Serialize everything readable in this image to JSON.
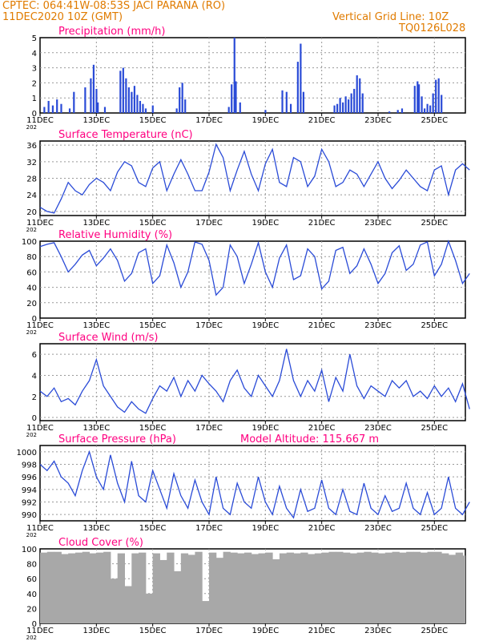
{
  "header": {
    "line1": "CPTEC:    064:41W-08:53S   JACI PARANA (RO)",
    "line2": "11DEC2020 10Z (GMT)",
    "grid_note": "Vertical Grid Line: 10Z",
    "code": "TQ0126L028"
  },
  "colors": {
    "header": "#e07b00",
    "title": "#ff0080",
    "line": "#2a4bd7",
    "bar": "#2a4bd7",
    "cloud": "#a8a8a8"
  },
  "x_axis": {
    "ticks": [
      "11DEC",
      "13DEC",
      "15DEC",
      "17DEC",
      "19DEC",
      "21DEC",
      "23DEC",
      "25DEC"
    ],
    "tick_days": [
      0,
      2,
      4,
      6,
      8,
      10,
      12,
      14
    ],
    "year_stub": "202",
    "range_days": [
      0,
      15.1
    ]
  },
  "chart_data": [
    {
      "type": "bar",
      "title": "Precipitation (mm/h)",
      "ylim": [
        0,
        5
      ],
      "yticks": [
        0,
        1,
        2,
        3,
        4,
        5
      ],
      "x_days": [
        0.15,
        0.3,
        0.45,
        0.6,
        0.75,
        1.05,
        1.2,
        1.6,
        1.8,
        1.9,
        2.0,
        2.05,
        2.3,
        2.85,
        2.95,
        3.05,
        3.15,
        3.25,
        3.35,
        3.45,
        3.55,
        3.65,
        3.75,
        4.0,
        4.85,
        4.95,
        5.05,
        5.15,
        6.7,
        6.8,
        6.9,
        6.95,
        7.1,
        8.0,
        8.6,
        8.75,
        8.9,
        9.15,
        9.25,
        9.35,
        10.45,
        10.55,
        10.65,
        10.75,
        10.85,
        10.95,
        11.05,
        11.15,
        11.25,
        11.35,
        11.45,
        12.4,
        12.7,
        12.85,
        13.3,
        13.4,
        13.45,
        13.55,
        13.65,
        13.75,
        13.85,
        13.95,
        14.05,
        14.15,
        14.25
      ],
      "values": [
        0.4,
        0.8,
        0.5,
        0.9,
        0.6,
        0.3,
        1.4,
        1.7,
        2.3,
        3.2,
        1.6,
        0.7,
        0.4,
        2.8,
        3.0,
        2.3,
        1.7,
        1.4,
        1.8,
        1.2,
        0.8,
        0.6,
        0.3,
        0.5,
        0.3,
        1.7,
        2.0,
        0.9,
        0.4,
        1.9,
        5.0,
        2.1,
        0.7,
        0.2,
        1.5,
        1.4,
        0.6,
        3.4,
        4.6,
        1.4,
        0.5,
        0.6,
        1.0,
        0.7,
        1.1,
        0.9,
        1.3,
        1.6,
        2.5,
        2.3,
        1.3,
        0.1,
        0.2,
        0.3,
        1.8,
        2.1,
        1.9,
        1.1,
        0.3,
        0.6,
        0.5,
        1.3,
        2.2,
        2.3,
        1.2
      ]
    },
    {
      "type": "line",
      "title": "Surface Temperature (nC)",
      "ylim": [
        19,
        37
      ],
      "yticks": [
        20,
        24,
        28,
        32,
        36
      ],
      "x_days": [
        0,
        0.25,
        0.5,
        0.75,
        1.0,
        1.25,
        1.5,
        1.75,
        2.0,
        2.25,
        2.5,
        2.75,
        3.0,
        3.25,
        3.5,
        3.75,
        4.0,
        4.25,
        4.5,
        4.75,
        5.0,
        5.25,
        5.5,
        5.75,
        6.0,
        6.25,
        6.5,
        6.75,
        7.0,
        7.25,
        7.5,
        7.75,
        8.0,
        8.25,
        8.5,
        8.75,
        9.0,
        9.25,
        9.5,
        9.75,
        10.0,
        10.25,
        10.5,
        10.75,
        11.0,
        11.25,
        11.5,
        11.75,
        12.0,
        12.25,
        12.5,
        12.75,
        13.0,
        13.25,
        13.5,
        13.75,
        14.0,
        14.25,
        14.5,
        14.75,
        15.0,
        15.25
      ],
      "values": [
        21,
        20,
        19.6,
        23,
        27,
        25,
        24,
        26.5,
        28,
        27,
        25,
        29.5,
        32,
        31,
        27,
        26,
        30.5,
        32,
        25,
        29,
        32.5,
        29,
        25,
        25,
        29.5,
        36.2,
        33,
        25,
        30,
        34.5,
        29,
        25,
        31.5,
        35,
        27,
        26,
        33,
        32,
        26,
        28.5,
        35,
        32,
        26,
        27,
        30,
        29,
        26,
        29,
        32,
        28,
        25.5,
        27.5,
        30,
        28,
        26,
        25,
        30,
        31,
        24,
        30,
        31.5,
        30
      ]
    },
    {
      "type": "line",
      "title": "Relative Humidity (%)",
      "ylim": [
        0,
        100
      ],
      "yticks": [
        0,
        20,
        40,
        60,
        80,
        100
      ],
      "x_days": [
        0,
        0.25,
        0.5,
        0.75,
        1.0,
        1.25,
        1.5,
        1.75,
        2.0,
        2.25,
        2.5,
        2.75,
        3.0,
        3.25,
        3.5,
        3.75,
        4.0,
        4.25,
        4.5,
        4.75,
        5.0,
        5.25,
        5.5,
        5.75,
        6.0,
        6.25,
        6.5,
        6.75,
        7.0,
        7.25,
        7.5,
        7.75,
        8.0,
        8.25,
        8.5,
        8.75,
        9.0,
        9.25,
        9.5,
        9.75,
        10.0,
        10.25,
        10.5,
        10.75,
        11.0,
        11.25,
        11.5,
        11.75,
        12.0,
        12.25,
        12.5,
        12.75,
        13.0,
        13.25,
        13.5,
        13.75,
        14.0,
        14.25,
        14.5,
        14.75,
        15.0,
        15.25
      ],
      "values": [
        93,
        96,
        98,
        80,
        60,
        70,
        82,
        88,
        68,
        78,
        90,
        75,
        48,
        58,
        85,
        90,
        45,
        55,
        95,
        72,
        40,
        60,
        99,
        96,
        75,
        30,
        40,
        95,
        80,
        45,
        70,
        98,
        60,
        40,
        78,
        95,
        50,
        55,
        90,
        80,
        38,
        48,
        88,
        92,
        58,
        68,
        90,
        70,
        45,
        58,
        85,
        94,
        62,
        70,
        95,
        99,
        55,
        70,
        100,
        75,
        45,
        58
      ]
    },
    {
      "type": "line",
      "title": "Surface Wind (m/s)",
      "ylim": [
        -0.3,
        7
      ],
      "yticks": [
        0,
        2,
        4,
        6
      ],
      "x_days": [
        0,
        0.25,
        0.5,
        0.75,
        1.0,
        1.25,
        1.5,
        1.75,
        2.0,
        2.25,
        2.5,
        2.75,
        3.0,
        3.25,
        3.5,
        3.75,
        4.0,
        4.25,
        4.5,
        4.75,
        5.0,
        5.25,
        5.5,
        5.75,
        6.0,
        6.25,
        6.5,
        6.75,
        7.0,
        7.25,
        7.5,
        7.75,
        8.0,
        8.25,
        8.5,
        8.75,
        9.0,
        9.25,
        9.5,
        9.75,
        10.0,
        10.25,
        10.5,
        10.75,
        11.0,
        11.25,
        11.5,
        11.75,
        12.0,
        12.25,
        12.5,
        12.75,
        13.0,
        13.25,
        13.5,
        13.75,
        14.0,
        14.25,
        14.5,
        14.75,
        15.0,
        15.25
      ],
      "values": [
        2.5,
        2.0,
        2.8,
        1.5,
        1.8,
        1.2,
        2.5,
        3.5,
        5.5,
        3.0,
        2.0,
        1.0,
        0.5,
        1.5,
        0.8,
        0.4,
        1.8,
        3.0,
        2.5,
        3.8,
        2.0,
        3.5,
        2.5,
        4.0,
        3.2,
        2.5,
        1.5,
        3.5,
        4.5,
        2.8,
        2.0,
        4.0,
        3.0,
        2.0,
        3.5,
        6.5,
        3.5,
        2.0,
        3.5,
        2.5,
        4.5,
        1.5,
        3.8,
        2.5,
        6.0,
        3.0,
        1.8,
        3.0,
        2.5,
        2.0,
        3.5,
        2.8,
        3.5,
        2.0,
        2.5,
        1.8,
        3.0,
        2.0,
        2.8,
        1.5,
        3.2,
        0.8
      ]
    },
    {
      "type": "line",
      "title": "Surface Pressure (hPa)",
      "annotation": "Model Altitude: 115.667  m",
      "ylim": [
        989,
        1001
      ],
      "yticks": [
        990,
        992,
        994,
        996,
        998,
        1000
      ],
      "x_days": [
        0,
        0.25,
        0.5,
        0.75,
        1.0,
        1.25,
        1.5,
        1.75,
        2.0,
        2.25,
        2.5,
        2.75,
        3.0,
        3.25,
        3.5,
        3.75,
        4.0,
        4.25,
        4.5,
        4.75,
        5.0,
        5.25,
        5.5,
        5.75,
        6.0,
        6.25,
        6.5,
        6.75,
        7.0,
        7.25,
        7.5,
        7.75,
        8.0,
        8.25,
        8.5,
        8.75,
        9.0,
        9.25,
        9.5,
        9.75,
        10.0,
        10.25,
        10.5,
        10.75,
        11.0,
        11.25,
        11.5,
        11.75,
        12.0,
        12.25,
        12.5,
        12.75,
        13.0,
        13.25,
        13.5,
        13.75,
        14.0,
        14.25,
        14.5,
        14.75,
        15.0,
        15.25
      ],
      "values": [
        998,
        997,
        998.5,
        996,
        995,
        993,
        997,
        1000,
        996,
        994,
        999.5,
        995,
        992,
        998.5,
        993,
        992,
        997,
        994,
        991,
        996.5,
        993,
        991,
        995.5,
        992,
        990,
        996,
        991,
        990,
        995,
        992,
        991,
        996,
        992,
        990,
        994.5,
        991,
        989.5,
        994,
        990.5,
        991,
        995.5,
        991,
        990,
        994,
        990.5,
        990,
        995,
        991,
        990,
        993,
        990.5,
        991,
        995,
        991,
        990,
        993.5,
        990,
        991,
        996,
        991,
        990,
        992
      ]
    },
    {
      "type": "area",
      "title": "Cloud Cover (%)",
      "ylim": [
        0,
        100
      ],
      "yticks": [
        0,
        20,
        40,
        60,
        80,
        100
      ],
      "x_days": [
        0,
        0.25,
        0.5,
        0.75,
        1.0,
        1.25,
        1.5,
        1.75,
        2.0,
        2.25,
        2.5,
        2.75,
        3.0,
        3.25,
        3.5,
        3.75,
        4.0,
        4.25,
        4.5,
        4.75,
        5.0,
        5.25,
        5.5,
        5.75,
        6.0,
        6.25,
        6.5,
        6.75,
        7.0,
        7.25,
        7.5,
        7.75,
        8.0,
        8.25,
        8.5,
        8.75,
        9.0,
        9.25,
        9.5,
        9.75,
        10.0,
        10.25,
        10.5,
        10.75,
        11.0,
        11.25,
        11.5,
        11.75,
        12.0,
        12.25,
        12.5,
        12.75,
        13.0,
        13.25,
        13.5,
        13.75,
        14.0,
        14.25,
        14.5,
        14.75,
        15.0,
        15.25
      ],
      "values": [
        95,
        96,
        96,
        93,
        94,
        95,
        96,
        94,
        95,
        96,
        60,
        94,
        50,
        94,
        95,
        40,
        94,
        85,
        95,
        70,
        94,
        92,
        96,
        30,
        95,
        88,
        96,
        95,
        94,
        95,
        93,
        94,
        95,
        86,
        94,
        95,
        94,
        95,
        93,
        94,
        95,
        96,
        96,
        95,
        94,
        95,
        96,
        95,
        94,
        95,
        96,
        95,
        96,
        96,
        95,
        96,
        96,
        94,
        92,
        95,
        91,
        95
      ]
    }
  ]
}
